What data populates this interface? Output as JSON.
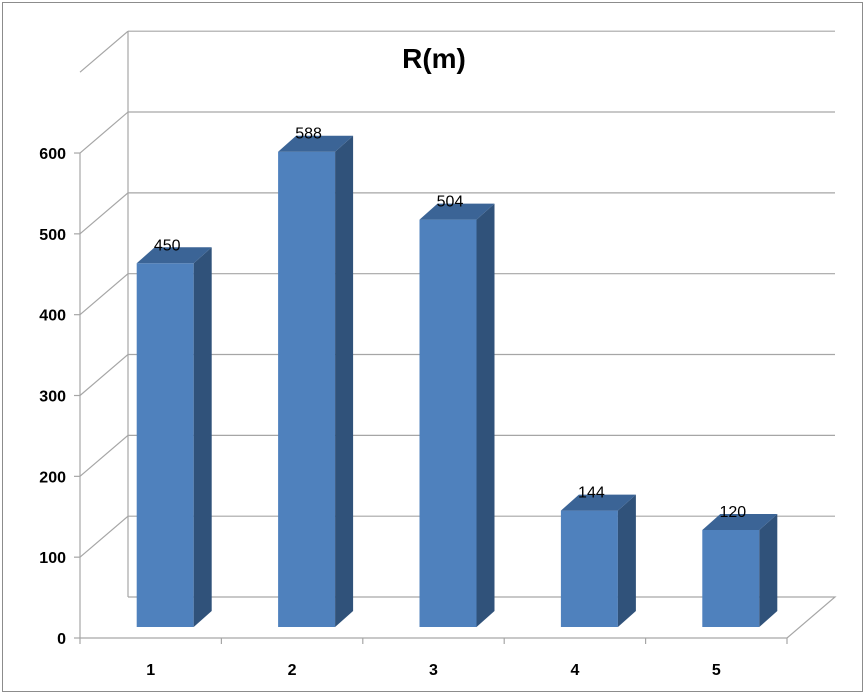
{
  "chart_data": {
    "type": "bar",
    "title": "R(m)",
    "xlabel": "",
    "ylabel": "",
    "categories": [
      "1",
      "2",
      "3",
      "4",
      "5"
    ],
    "values": [
      450,
      588,
      504,
      144,
      120
    ],
    "data_labels": [
      "450",
      "588",
      "504",
      "144",
      "120"
    ],
    "y_ticks": [
      "0",
      "100",
      "200",
      "300",
      "400",
      "500",
      "600"
    ],
    "ylim": [
      0,
      600
    ],
    "grid": true,
    "legend": "none",
    "style": "3d-column",
    "colors": {
      "bar_front": "#4f81bd",
      "bar_side": "#30527a",
      "bar_top": "#3b6496",
      "grid": "#a6a6a6"
    }
  }
}
